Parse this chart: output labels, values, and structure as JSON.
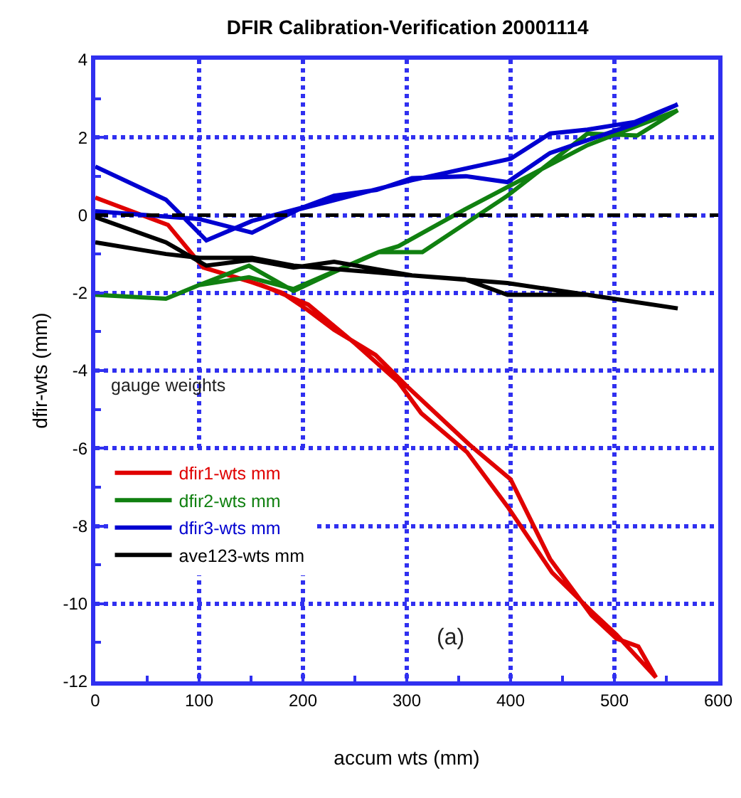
{
  "chart_data": {
    "type": "line",
    "title": "DFIR Calibration-Verification 20001114",
    "xlabel": "accum wts (mm)",
    "ylabel": "dfir-wts (mm)",
    "annotations": [
      "gauge weights",
      "(a)"
    ],
    "xlim": [
      0,
      600
    ],
    "xticks": [
      0,
      100,
      200,
      300,
      400,
      500,
      600
    ],
    "ylim": [
      -12,
      4
    ],
    "yticks": [
      -12,
      -10,
      -8,
      -6,
      -4,
      -2,
      0,
      2,
      4
    ],
    "grid": true,
    "legend": "bottom left",
    "marker": "none",
    "line_style": "solid",
    "ref_lines": [
      {
        "axis": "y",
        "value": 0,
        "color": "#000000",
        "line_style": "dashed"
      }
    ],
    "series": [
      {
        "name": "dfir1-wts mm",
        "color": "#e00000",
        "x": [
          0,
          70,
          104,
          148,
          180,
          205,
          230,
          270,
          300,
          340,
          360,
          400,
          438,
          478,
          502,
          523,
          540,
          502,
          478,
          440,
          397,
          358,
          314,
          292,
          250,
          205,
          160,
          104
        ],
        "values": [
          0.45,
          -0.25,
          -1.35,
          -1.7,
          -2.0,
          -2.45,
          -2.95,
          -3.6,
          -4.4,
          -5.4,
          -5.9,
          -6.8,
          -8.85,
          -10.3,
          -10.9,
          -11.1,
          -11.9,
          -10.8,
          -10.2,
          -9.2,
          -7.5,
          -6.1,
          -5.1,
          -4.3,
          -3.3,
          -2.3,
          -1.8,
          -1.35
        ]
      },
      {
        "name": "dfir2-wts mm",
        "color": "#108010",
        "x": [
          0,
          68,
          100,
          148,
          191,
          227,
          273,
          315,
          397,
          474,
          522,
          561,
          474,
          356,
          292,
          273,
          191,
          148,
          100
        ],
        "values": [
          -2.05,
          -2.15,
          -1.8,
          -1.3,
          -1.95,
          -1.5,
          -0.95,
          -0.95,
          0.5,
          2.1,
          2.05,
          2.7,
          1.8,
          0.15,
          -0.8,
          -0.95,
          -1.9,
          -1.6,
          -1.8
        ]
      },
      {
        "name": "dfir3-wts mm",
        "color": "#0000d0",
        "x": [
          0,
          68,
          107,
          151,
          200,
          230,
          271,
          305,
          357,
          397,
          438,
          520,
          561,
          520,
          474,
          438,
          400,
          305,
          196,
          151,
          100,
          0
        ],
        "values": [
          1.25,
          0.4,
          -0.65,
          -0.15,
          0.2,
          0.5,
          0.65,
          0.95,
          1.0,
          0.85,
          1.6,
          2.35,
          2.85,
          2.4,
          2.2,
          2.1,
          1.45,
          0.9,
          0.15,
          -0.45,
          -0.1,
          0.1
        ]
      },
      {
        "name": "ave123-wts mm",
        "color": "#000000",
        "x": [
          0,
          68,
          107,
          151,
          191,
          230,
          305,
          356,
          397,
          474,
          561,
          474,
          397,
          305,
          191,
          151,
          100,
          68,
          0
        ],
        "values": [
          -0.05,
          -0.7,
          -1.3,
          -1.15,
          -1.35,
          -1.2,
          -1.55,
          -1.65,
          -2.05,
          -2.05,
          -2.4,
          -2.05,
          -1.75,
          -1.55,
          -1.3,
          -1.1,
          -1.1,
          -1.0,
          -0.7
        ]
      }
    ]
  }
}
